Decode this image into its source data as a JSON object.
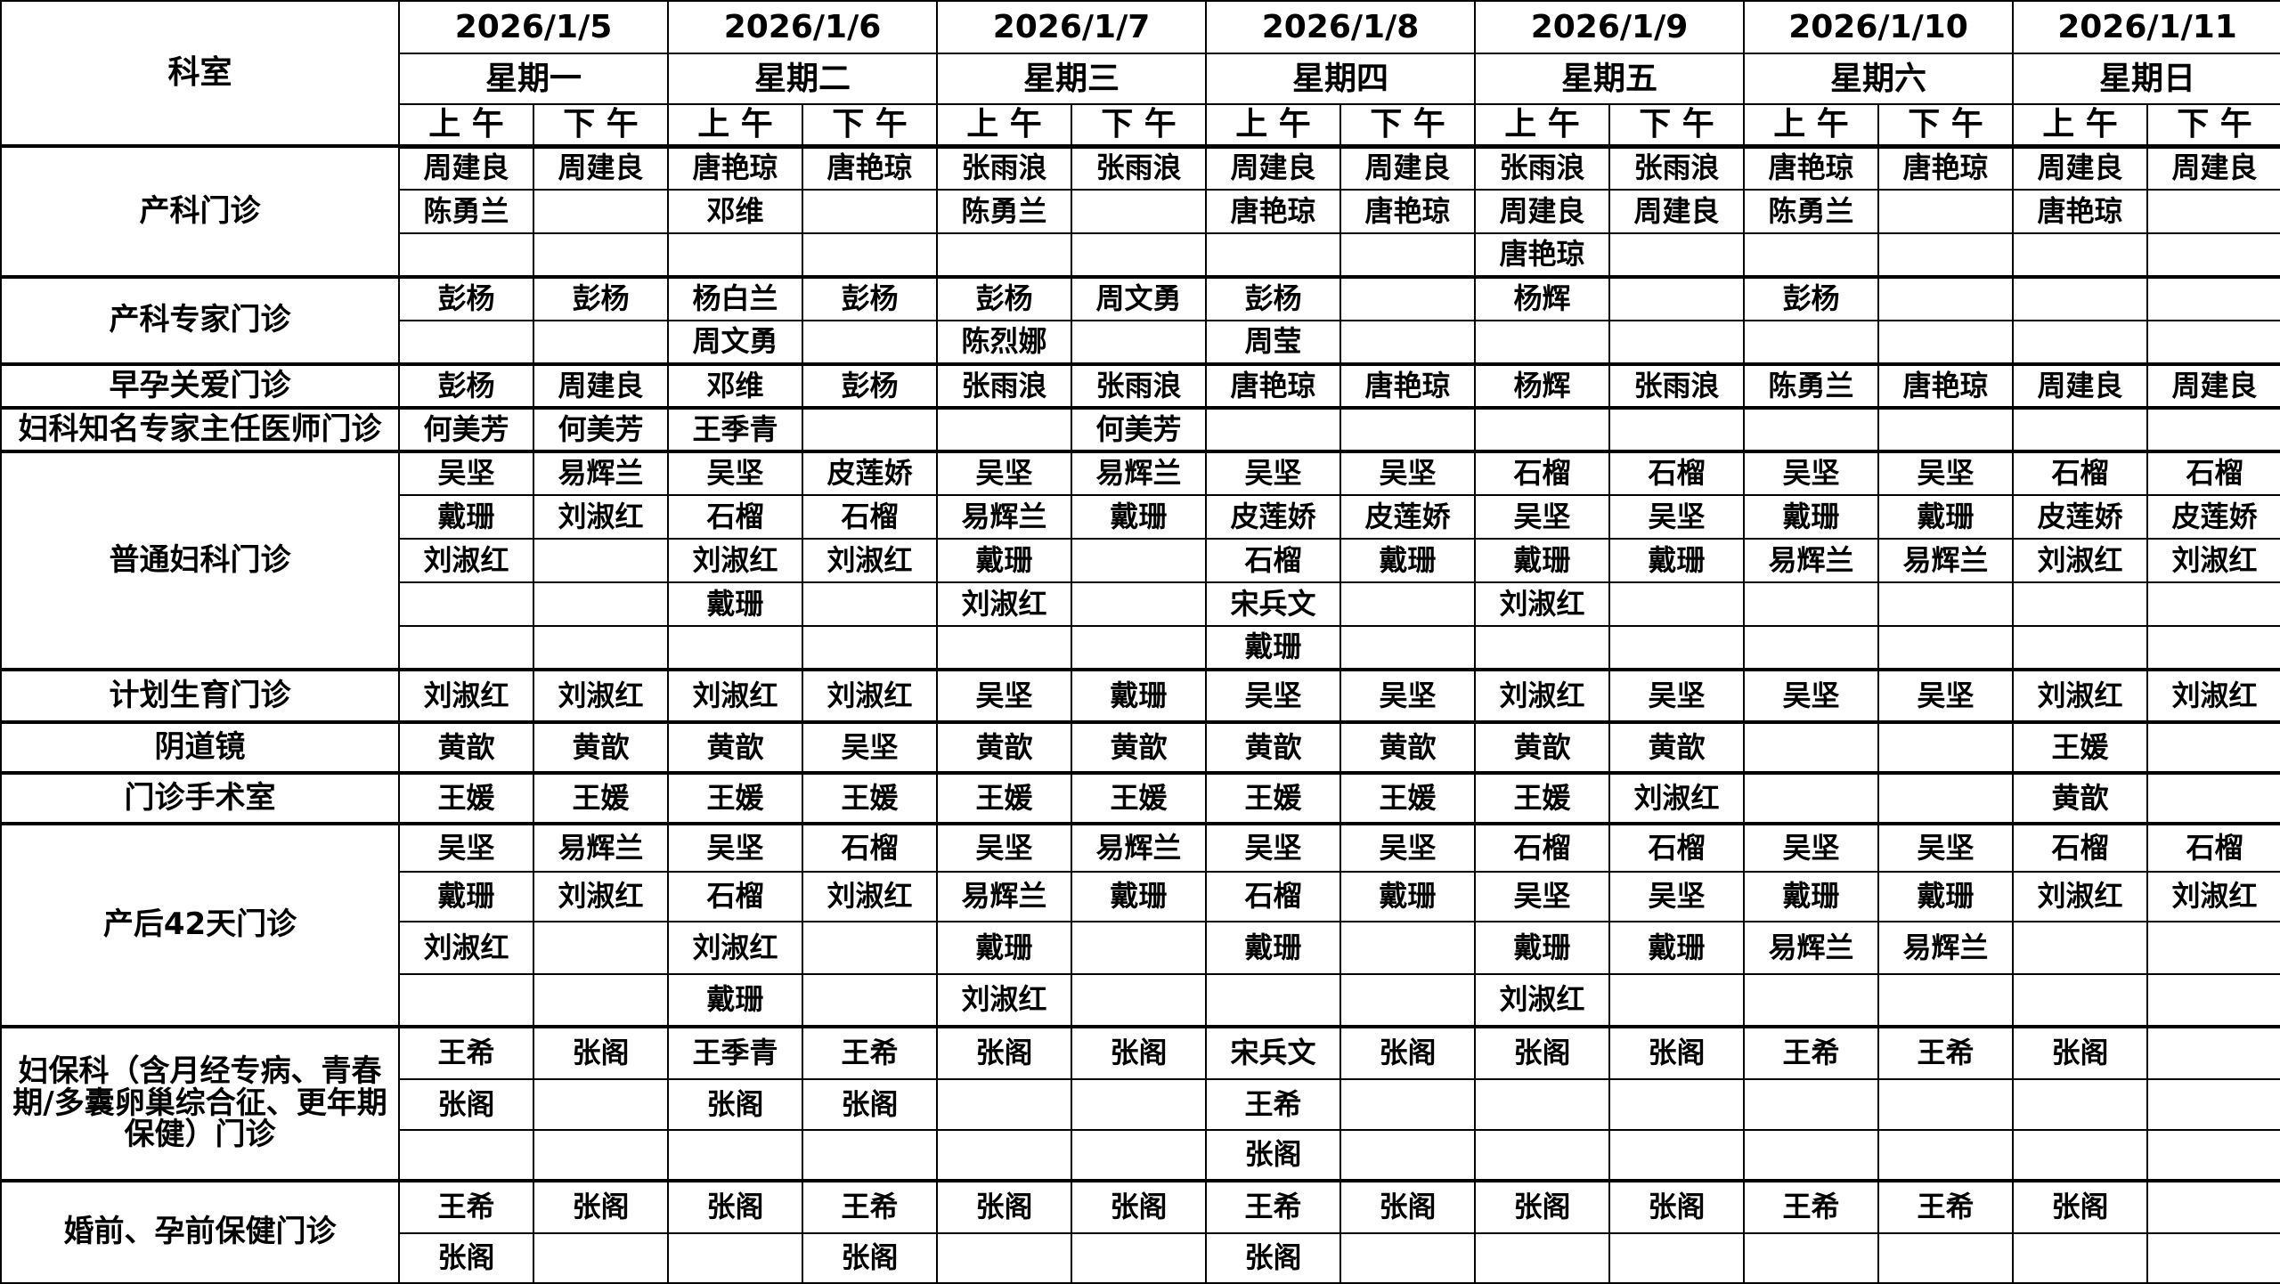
{
  "header": {
    "dept_label": "科室",
    "dates": [
      "2026/1/5",
      "2026/1/6",
      "2026/1/7",
      "2026/1/8",
      "2026/1/9",
      "2026/1/10",
      "2026/1/11"
    ],
    "weekdays": [
      "星期一",
      "星期二",
      "星期三",
      "星期四",
      "星期五",
      "星期六",
      "星期日"
    ],
    "am": "上 午",
    "pm": "下 午"
  },
  "departments": [
    {
      "name": "产科门诊",
      "heights": [
        49,
        49,
        49
      ],
      "rows": [
        [
          "周建良",
          "周建良",
          "唐艳琼",
          "唐艳琼",
          "张雨浪",
          "张雨浪",
          "周建良",
          "周建良",
          "张雨浪",
          "张雨浪",
          "唐艳琼",
          "唐艳琼",
          "周建良",
          "周建良"
        ],
        [
          "陈勇兰",
          "",
          "邓维",
          "",
          "陈勇兰",
          "",
          "唐艳琼",
          "唐艳琼",
          "周建良",
          "周建良",
          "陈勇兰",
          "",
          "唐艳琼",
          ""
        ],
        [
          "",
          "",
          "",
          "",
          "",
          "",
          "",
          "",
          "唐艳琼",
          "",
          "",
          "",
          "",
          ""
        ]
      ]
    },
    {
      "name": "产科专家门诊",
      "heights": [
        49,
        49
      ],
      "rows": [
        [
          "彭杨",
          "彭杨",
          "杨白兰",
          "彭杨",
          "彭杨",
          "周文勇",
          "彭杨",
          "",
          "杨辉",
          "",
          "彭杨",
          "",
          "",
          ""
        ],
        [
          "",
          "",
          "周文勇",
          "",
          "陈烈娜",
          "",
          "周莹",
          "",
          "",
          "",
          "",
          "",
          "",
          ""
        ]
      ]
    },
    {
      "name": "早孕关爱门诊",
      "heights": [
        49
      ],
      "rows": [
        [
          "彭杨",
          "周建良",
          "邓维",
          "彭杨",
          "张雨浪",
          "张雨浪",
          "唐艳琼",
          "唐艳琼",
          "杨辉",
          "张雨浪",
          "陈勇兰",
          "唐艳琼",
          "周建良",
          "周建良"
        ]
      ]
    },
    {
      "name": "妇科知名专家主任医师门诊",
      "heights": [
        49
      ],
      "rows": [
        [
          "何美芳",
          "何美芳",
          "王季青",
          "",
          "",
          "何美芳",
          "",
          "",
          "",
          "",
          "",
          "",
          "",
          ""
        ]
      ]
    },
    {
      "name": "普通妇科门诊",
      "heights": [
        49,
        49,
        49,
        49,
        49
      ],
      "rows": [
        [
          "吴坚",
          "易辉兰",
          "吴坚",
          "皮莲娇",
          "吴坚",
          "易辉兰",
          "吴坚",
          "吴坚",
          "石榴",
          "石榴",
          "吴坚",
          "吴坚",
          "石榴",
          "石榴"
        ],
        [
          "戴珊",
          "刘淑红",
          "石榴",
          "石榴",
          "易辉兰",
          "戴珊",
          "皮莲娇",
          "皮莲娇",
          "吴坚",
          "吴坚",
          "戴珊",
          "戴珊",
          "皮莲娇",
          "皮莲娇"
        ],
        [
          "刘淑红",
          "",
          "刘淑红",
          "刘淑红",
          "戴珊",
          "",
          "石榴",
          "戴珊",
          "戴珊",
          "戴珊",
          "易辉兰",
          "易辉兰",
          "刘淑红",
          "刘淑红"
        ],
        [
          "",
          "",
          "戴珊",
          "",
          "刘淑红",
          "",
          "宋兵文",
          "",
          "刘淑红",
          "",
          "",
          "",
          "",
          ""
        ],
        [
          "",
          "",
          "",
          "",
          "",
          "",
          "戴珊",
          "",
          "",
          "",
          "",
          "",
          "",
          ""
        ]
      ]
    },
    {
      "name": "计划生育门诊",
      "heights": [
        59
      ],
      "rows": [
        [
          "刘淑红",
          "刘淑红",
          "刘淑红",
          "刘淑红",
          "吴坚",
          "戴珊",
          "吴坚",
          "吴坚",
          "刘淑红",
          "吴坚",
          "吴坚",
          "吴坚",
          "刘淑红",
          "刘淑红"
        ]
      ]
    },
    {
      "name": "阴道镜",
      "heights": [
        57
      ],
      "rows": [
        [
          "黄歆",
          "黄歆",
          "黄歆",
          "吴坚",
          "黄歆",
          "黄歆",
          "黄歆",
          "黄歆",
          "黄歆",
          "黄歆",
          "",
          "",
          "王媛",
          ""
        ]
      ]
    },
    {
      "name": "门诊手术室",
      "heights": [
        57
      ],
      "rows": [
        [
          "王媛",
          "王媛",
          "王媛",
          "王媛",
          "王媛",
          "王媛",
          "王媛",
          "王媛",
          "王媛",
          "刘淑红",
          "",
          "",
          "黄歆",
          ""
        ]
      ]
    },
    {
      "name": "产后42天门诊",
      "heights": [
        54,
        56,
        59,
        59
      ],
      "rows": [
        [
          "吴坚",
          "易辉兰",
          "吴坚",
          "石榴",
          "吴坚",
          "易辉兰",
          "吴坚",
          "吴坚",
          "石榴",
          "石榴",
          "吴坚",
          "吴坚",
          "石榴",
          "石榴"
        ],
        [
          "戴珊",
          "刘淑红",
          "石榴",
          "刘淑红",
          "易辉兰",
          "戴珊",
          "石榴",
          "戴珊",
          "吴坚",
          "吴坚",
          "戴珊",
          "戴珊",
          "刘淑红",
          "刘淑红"
        ],
        [
          "刘淑红",
          "",
          "刘淑红",
          "",
          "戴珊",
          "",
          "戴珊",
          "",
          "戴珊",
          "戴珊",
          "易辉兰",
          "易辉兰",
          "",
          ""
        ],
        [
          "",
          "",
          "戴珊",
          "",
          "刘淑红",
          "",
          "",
          "",
          "刘淑红",
          "",
          "",
          "",
          "",
          ""
        ]
      ]
    },
    {
      "name": "妇保科（含月经专病、青春期/多囊卵巢综合征、更年期保健）门诊",
      "heights": [
        59,
        57,
        57
      ],
      "rows": [
        [
          "王希",
          "张阁",
          "王季青",
          "王希",
          "张阁",
          "张阁",
          "宋兵文",
          "张阁",
          "张阁",
          "张阁",
          "王希",
          "王希",
          "张阁",
          ""
        ],
        [
          "张阁",
          "",
          "张阁",
          "张阁",
          "",
          "",
          "王希",
          "",
          "",
          "",
          "",
          "",
          "",
          ""
        ],
        [
          "",
          "",
          "",
          "",
          "",
          "",
          "张阁",
          "",
          "",
          "",
          "",
          "",
          "",
          ""
        ]
      ]
    },
    {
      "name": "婚前、孕前保健门诊",
      "heights": [
        59,
        56
      ],
      "rows": [
        [
          "王希",
          "张阁",
          "张阁",
          "王希",
          "张阁",
          "张阁",
          "王希",
          "张阁",
          "张阁",
          "张阁",
          "王希",
          "王希",
          "张阁",
          ""
        ],
        [
          "张阁",
          "",
          "",
          "张阁",
          "",
          "",
          "张阁",
          "",
          "",
          "",
          "",
          "",
          "",
          ""
        ]
      ]
    }
  ]
}
